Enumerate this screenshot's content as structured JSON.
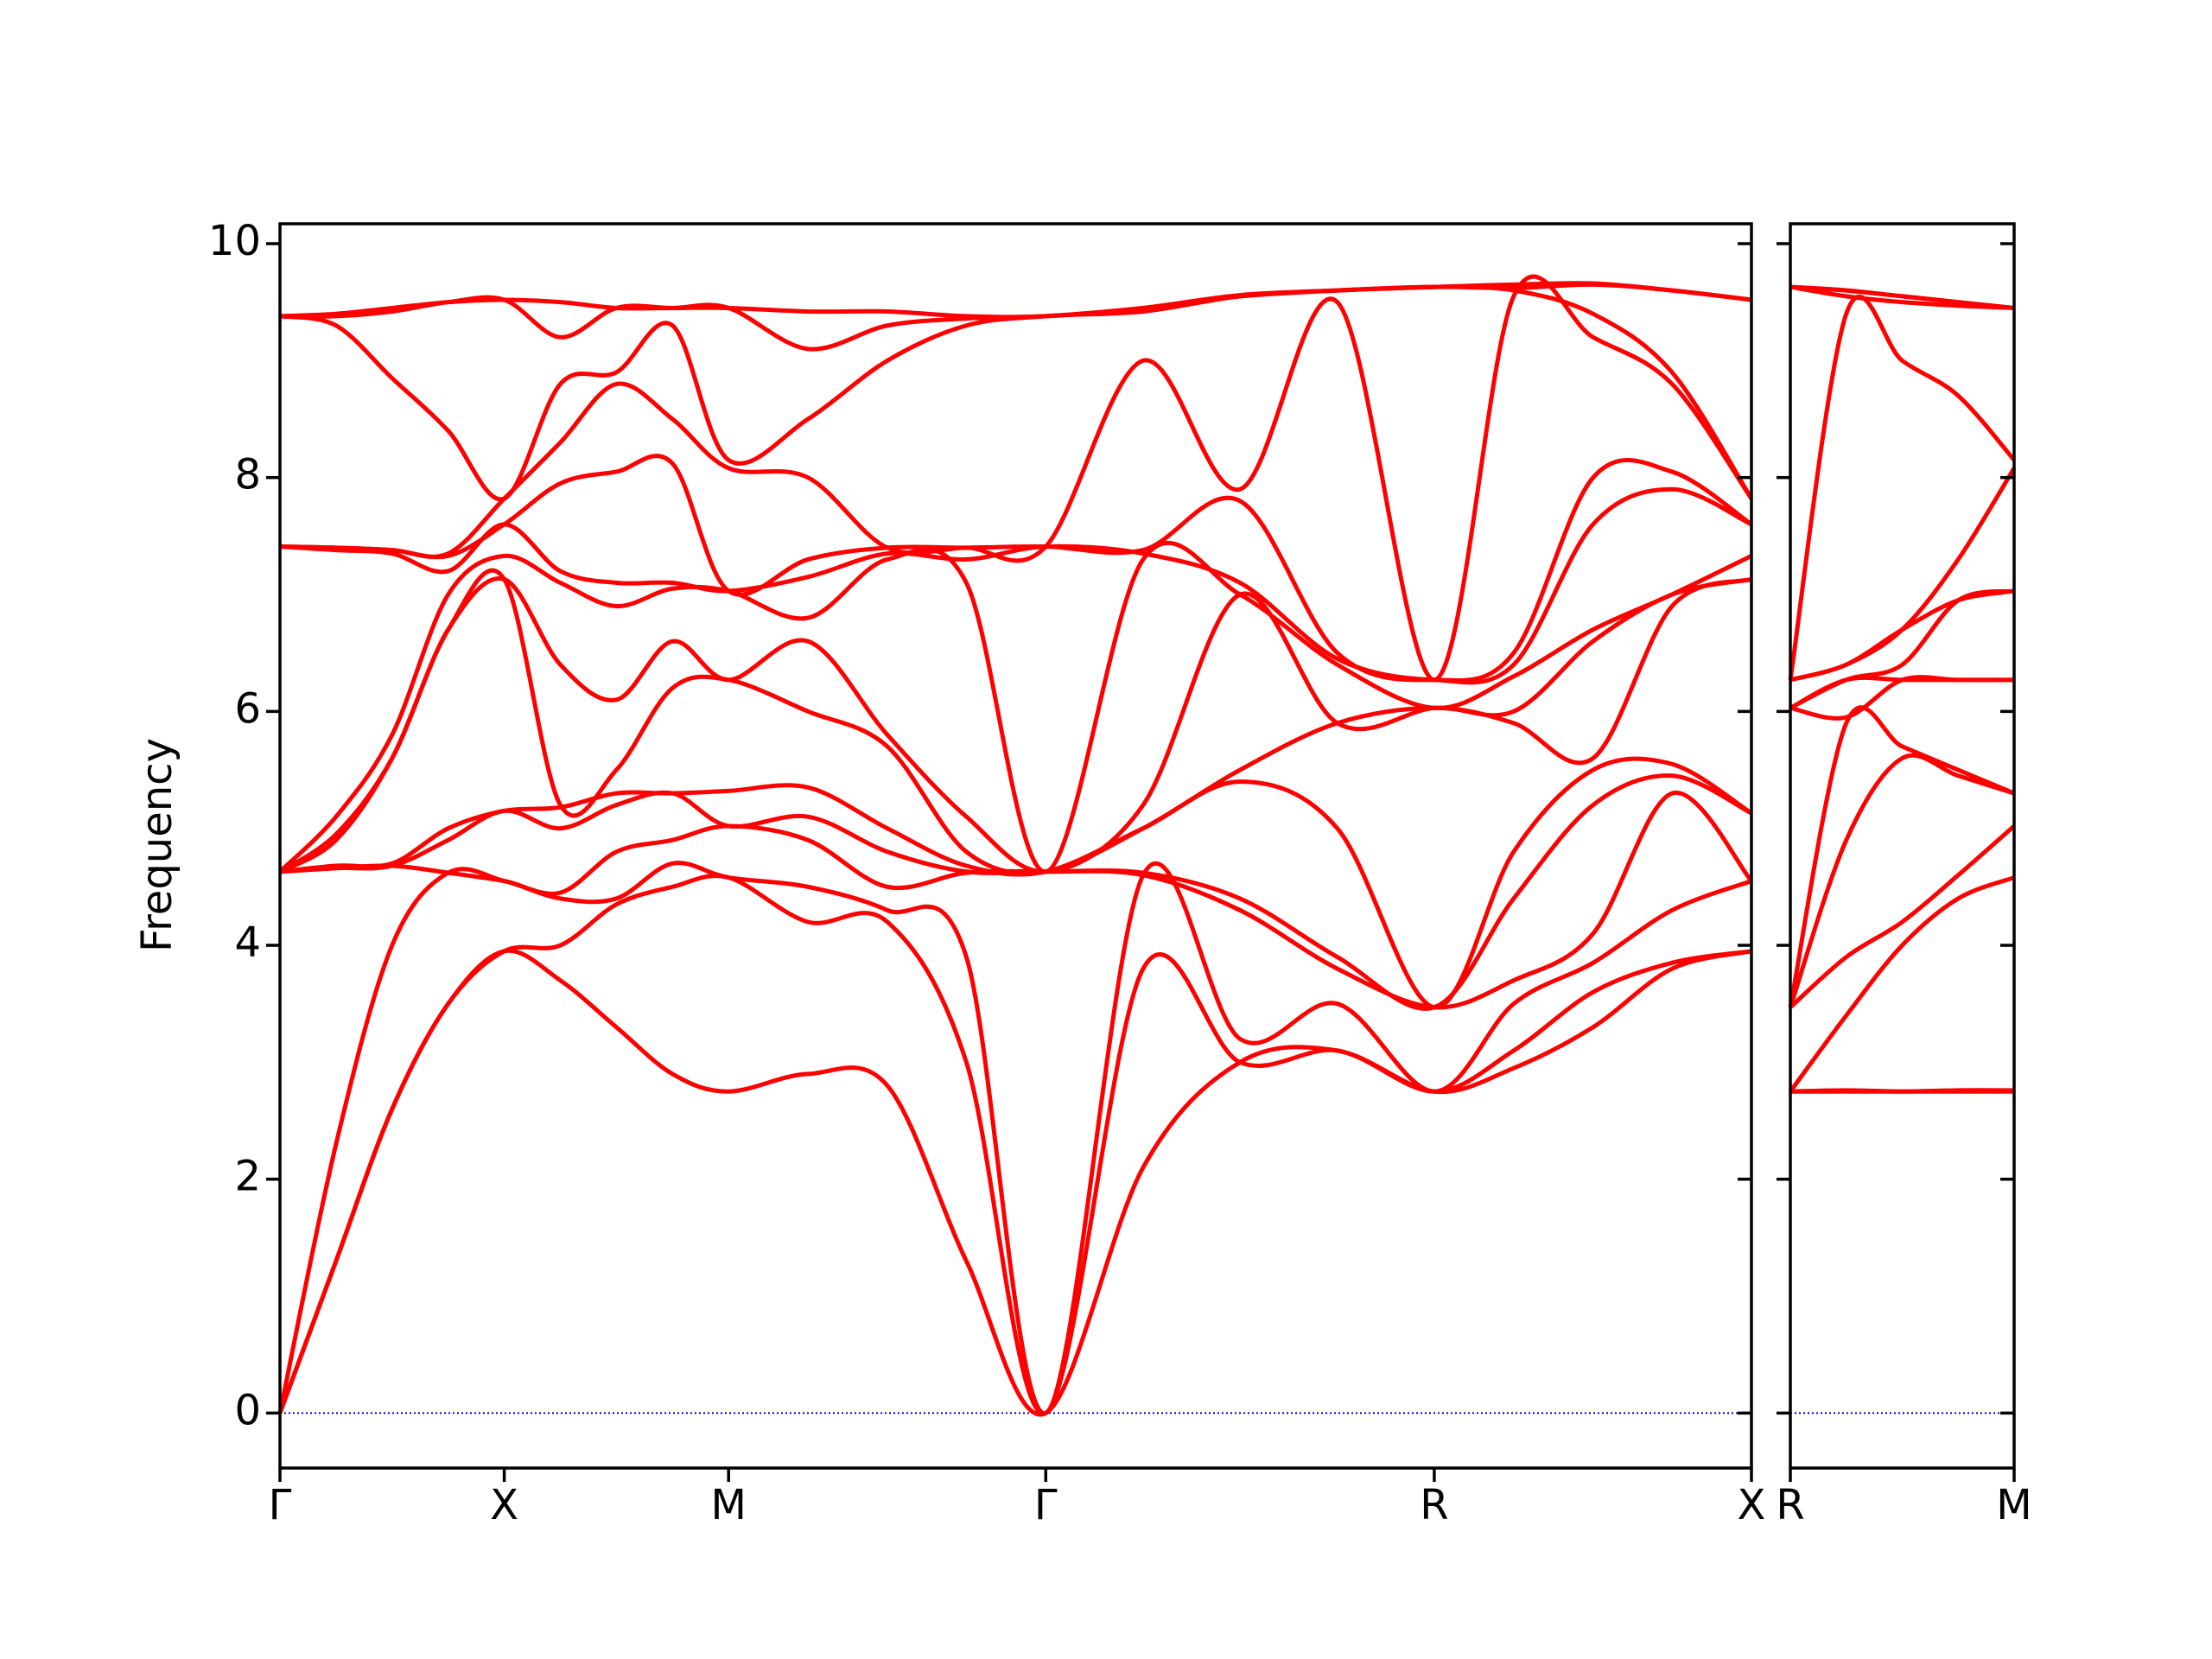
{
  "chart_data": [
    {
      "type": "line",
      "ylabel": "Frequency",
      "color": "#ff0000",
      "x": [
        0,
        0.125,
        0.25,
        0.375,
        0.5,
        0.625,
        0.75,
        0.875,
        1.0,
        1.177,
        1.354,
        1.53,
        1.707,
        1.924,
        2.14,
        2.357,
        2.573,
        2.75,
        2.927,
        3.103,
        3.28
      ],
      "series": [
        {
          "values": [
            0,
            1.3,
            2.6,
            3.5,
            3.95,
            3.7,
            3.3,
            2.9,
            2.75,
            2.9,
            2.8,
            1.3,
            0,
            2.1,
            3.0,
            3.1,
            2.75,
            2.95,
            3.3,
            3.8,
            3.95
          ]
        },
        {
          "values": [
            0,
            1.3,
            2.6,
            3.5,
            3.95,
            4.0,
            4.35,
            4.5,
            4.58,
            4.2,
            4.2,
            3.0,
            0,
            3.8,
            3.0,
            3.1,
            2.75,
            3.1,
            3.6,
            3.85,
            3.95
          ]
        },
        {
          "values": [
            0,
            2.3,
            4.0,
            4.62,
            4.55,
            4.4,
            4.4,
            4.7,
            4.58,
            4.5,
            4.3,
            3.9,
            0,
            4.6,
            3.2,
            3.5,
            2.75,
            3.5,
            3.85,
            4.3,
            4.55
          ]
        },
        {
          "values": [
            4.63,
            4.66,
            4.68,
            4.62,
            4.55,
            4.45,
            4.8,
            4.9,
            5.02,
            4.9,
            4.5,
            4.62,
            4.63,
            4.6,
            4.3,
            3.8,
            3.47,
            3.7,
            4.1,
            5.3,
            4.55
          ]
        },
        {
          "values": [
            4.63,
            4.66,
            4.68,
            4.9,
            5.15,
            5.0,
            5.2,
            5.3,
            5.02,
            5.1,
            4.8,
            4.63,
            4.63,
            4.62,
            4.4,
            3.9,
            3.47,
            4.4,
            5.2,
            5.45,
            5.13
          ]
        },
        {
          "values": [
            4.63,
            4.68,
            4.7,
            5.0,
            5.15,
            5.18,
            5.3,
            5.3,
            5.32,
            5.35,
            5.0,
            4.68,
            4.63,
            5.0,
            5.4,
            5.0,
            3.47,
            4.8,
            5.5,
            5.55,
            5.13
          ]
        },
        {
          "values": [
            4.63,
            4.9,
            5.6,
            6.7,
            7.13,
            5.2,
            5.5,
            6.2,
            6.27,
            6.0,
            5.7,
            4.8,
            4.63,
            5.0,
            5.5,
            5.9,
            6.03,
            5.9,
            5.6,
            6.9,
            7.13
          ]
        },
        {
          "values": [
            4.63,
            4.95,
            5.6,
            6.7,
            7.13,
            6.4,
            6.1,
            6.6,
            6.27,
            6.6,
            5.8,
            5.1,
            4.63,
            5.2,
            7.0,
            5.9,
            6.03,
            6.0,
            6.6,
            7.0,
            7.13
          ]
        },
        {
          "values": [
            4.63,
            5.1,
            5.8,
            7.0,
            7.33,
            7.1,
            6.9,
            7.05,
            7.03,
            6.8,
            7.3,
            7.1,
            4.63,
            7.3,
            7.0,
            6.4,
            6.03,
            6.3,
            6.7,
            7.0,
            7.33
          ]
        },
        {
          "values": [
            7.41,
            7.38,
            7.35,
            7.2,
            7.6,
            7.2,
            7.1,
            7.1,
            7.03,
            7.15,
            7.35,
            7.3,
            7.41,
            7.35,
            7.1,
            6.45,
            6.27,
            6.4,
            7.6,
            7.9,
            7.6
          ]
        },
        {
          "values": [
            7.41,
            7.4,
            7.38,
            7.33,
            7.6,
            7.95,
            8.05,
            8.12,
            7.03,
            7.3,
            7.4,
            7.4,
            7.41,
            7.38,
            7.8,
            6.5,
            6.27,
            6.5,
            8.0,
            8.05,
            7.6
          ]
        },
        {
          "values": [
            7.41,
            7.4,
            7.38,
            7.35,
            7.82,
            8.3,
            8.8,
            8.5,
            8.08,
            8.0,
            7.4,
            7.4,
            7.41,
            9.0,
            7.9,
            9.5,
            6.27,
            9.55,
            9.2,
            8.8,
            7.82
          ]
        },
        {
          "values": [
            9.38,
            9.3,
            8.85,
            8.4,
            7.82,
            8.8,
            8.9,
            9.3,
            8.15,
            8.5,
            9.0,
            9.3,
            9.38,
            9.42,
            9.55,
            9.6,
            9.63,
            9.6,
            9.4,
            8.9,
            7.82
          ]
        },
        {
          "values": [
            9.38,
            9.38,
            9.42,
            9.5,
            9.52,
            9.2,
            9.45,
            9.45,
            9.45,
            9.1,
            9.3,
            9.36,
            9.38,
            9.45,
            9.55,
            9.6,
            9.63,
            9.62,
            9.65,
            9.6,
            9.52
          ]
        },
        {
          "values": [
            9.38,
            9.4,
            9.45,
            9.5,
            9.52,
            9.5,
            9.45,
            9.45,
            9.45,
            9.42,
            9.42,
            9.38,
            9.38,
            9.45,
            9.56,
            9.6,
            9.63,
            9.65,
            9.66,
            9.6,
            9.52
          ]
        }
      ],
      "xlim": [
        0,
        3.28
      ],
      "xticks": [
        {
          "value": 0,
          "label": "Γ"
        },
        {
          "value": 0.5,
          "label": "X"
        },
        {
          "value": 1.0,
          "label": "M"
        },
        {
          "value": 1.707,
          "label": "Γ"
        },
        {
          "value": 2.573,
          "label": "R"
        },
        {
          "value": 3.28,
          "label": "X"
        }
      ],
      "ylim": [
        -0.47,
        10.17
      ],
      "yticks": [
        0,
        2,
        4,
        6,
        8,
        10
      ],
      "ytick_labels": true,
      "hline": {
        "value": 0,
        "color": "#0000cc"
      }
    },
    {
      "type": "line",
      "color": "#ff0000",
      "x": [
        0,
        0.125,
        0.25,
        0.375,
        0.5
      ],
      "series": [
        {
          "values": [
            2.75,
            2.75,
            2.75,
            2.75,
            2.75
          ]
        },
        {
          "values": [
            2.75,
            2.76,
            2.75,
            2.76,
            2.76
          ]
        },
        {
          "values": [
            2.75,
            3.4,
            4.0,
            4.4,
            4.58
          ]
        },
        {
          "values": [
            3.47,
            3.9,
            4.2,
            4.6,
            5.02
          ]
        },
        {
          "values": [
            3.47,
            4.9,
            5.6,
            5.45,
            5.3
          ]
        },
        {
          "values": [
            3.47,
            5.9,
            5.7,
            5.5,
            5.3
          ]
        },
        {
          "values": [
            6.03,
            5.95,
            6.27,
            6.27,
            6.27
          ]
        },
        {
          "values": [
            6.03,
            6.27,
            6.27,
            6.27,
            6.27
          ]
        },
        {
          "values": [
            6.03,
            6.27,
            6.4,
            6.95,
            7.03
          ]
        },
        {
          "values": [
            6.27,
            6.4,
            6.7,
            6.95,
            7.03
          ]
        },
        {
          "values": [
            6.27,
            6.4,
            6.7,
            7.3,
            8.08
          ]
        },
        {
          "values": [
            6.27,
            9.4,
            9.0,
            8.7,
            8.15
          ]
        },
        {
          "values": [
            9.63,
            9.55,
            9.5,
            9.47,
            9.45
          ]
        },
        {
          "values": [
            9.63,
            9.6,
            9.55,
            9.5,
            9.45
          ]
        },
        {
          "values": [
            9.63,
            9.6,
            9.55,
            9.5,
            9.45
          ]
        }
      ],
      "xlim": [
        0,
        0.5
      ],
      "xticks": [
        {
          "value": 0,
          "label": "R"
        },
        {
          "value": 0.5,
          "label": "M"
        }
      ],
      "ylim": [
        -0.47,
        10.17
      ],
      "yticks": [
        0,
        2,
        4,
        6,
        8,
        10
      ],
      "ytick_labels": false,
      "hline": {
        "value": 0,
        "color": "#0000cc"
      }
    }
  ]
}
